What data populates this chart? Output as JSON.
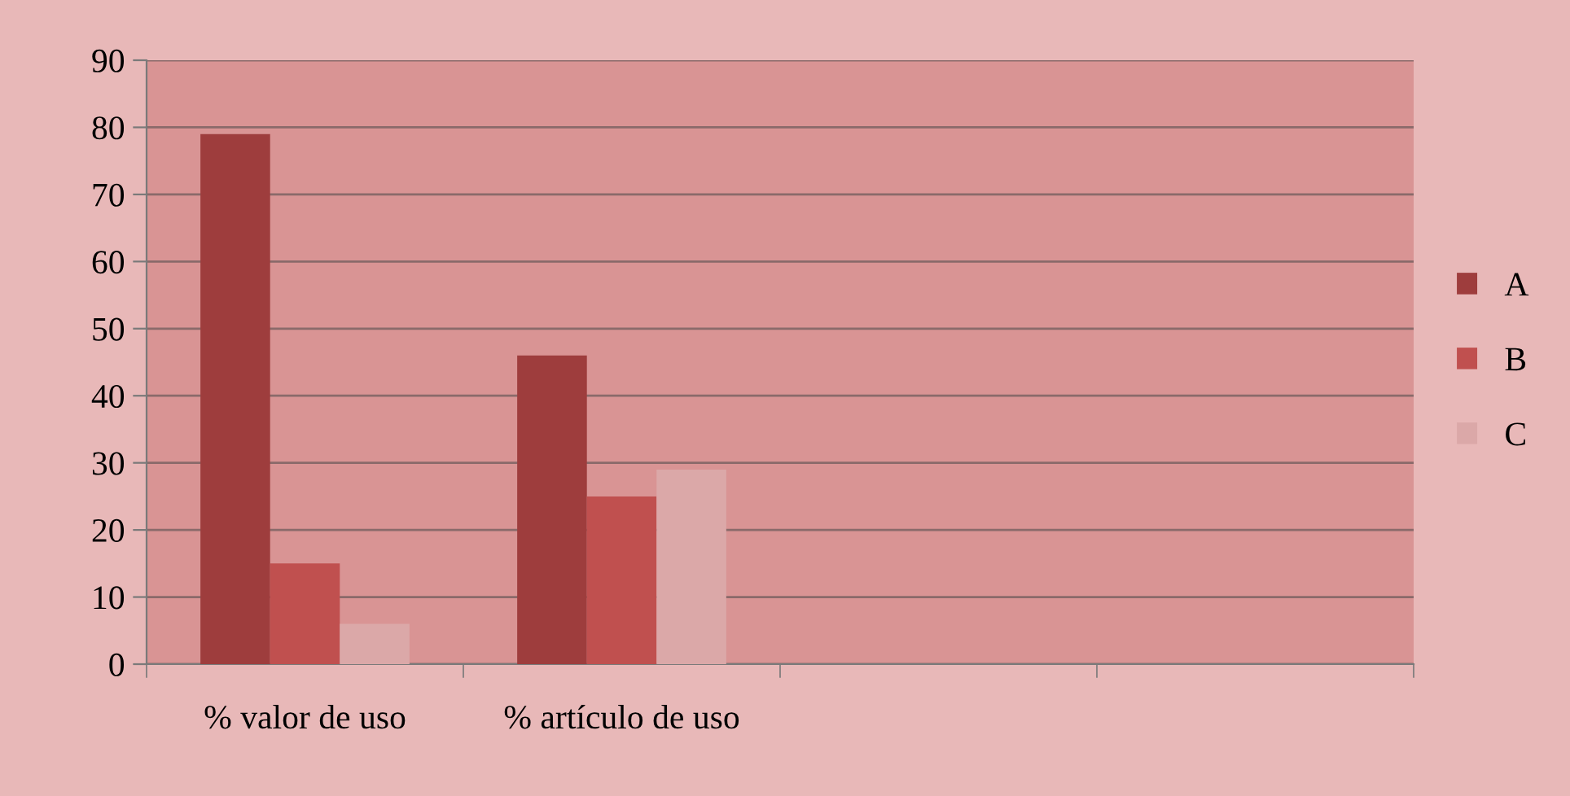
{
  "chart_data": {
    "type": "bar",
    "categories": [
      "% valor de uso",
      "% artículo de uso",
      null,
      null
    ],
    "series": [
      {
        "name": "A",
        "color": "#9e3d3d",
        "values": [
          79,
          46,
          null,
          null
        ]
      },
      {
        "name": "B",
        "color": "#c0504f",
        "values": [
          15,
          25,
          null,
          null
        ]
      },
      {
        "name": "C",
        "color": "#dba8a8",
        "values": [
          6,
          29,
          null,
          null
        ]
      }
    ],
    "ylim": [
      0,
      90
    ],
    "yticks": [
      0,
      10,
      20,
      30,
      40,
      50,
      60,
      70,
      80,
      90
    ],
    "grid": "y",
    "legend": "right"
  }
}
